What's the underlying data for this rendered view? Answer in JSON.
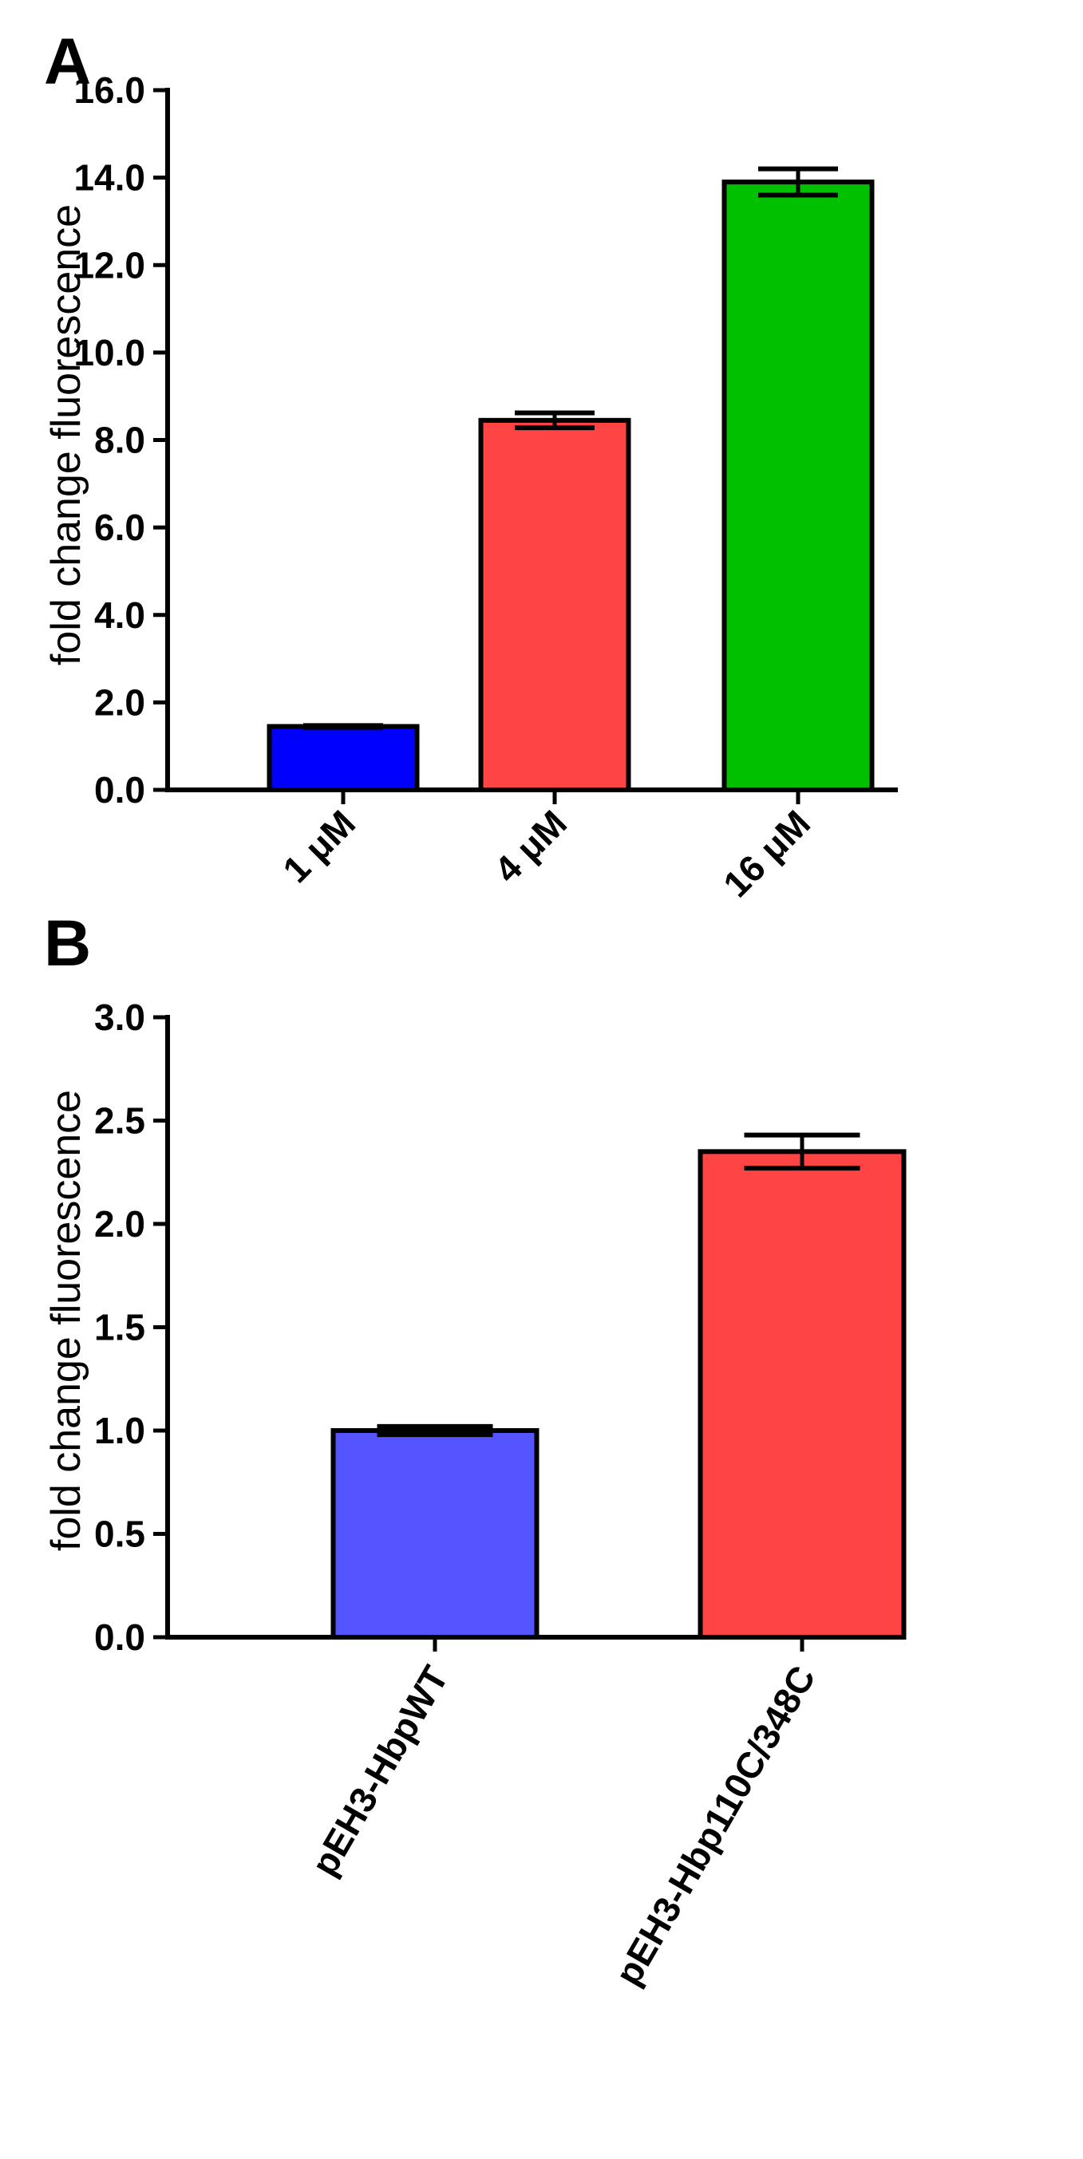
{
  "chart_data": [
    {
      "panel": "A",
      "type": "bar",
      "title": "",
      "xlabel": "",
      "ylabel": "fold change fluorescence",
      "ylim": [
        0,
        16
      ],
      "yticks": [
        "0.0",
        "2.0",
        "4.0",
        "6.0",
        "8.0",
        "10.0",
        "12.0",
        "14.0",
        "16.0"
      ],
      "ytick_values": [
        0,
        2,
        4,
        6,
        8,
        10,
        12,
        14,
        16
      ],
      "categories": [
        "1 μM",
        "4 μM",
        "16 μM"
      ],
      "values": [
        1.45,
        8.45,
        13.9
      ],
      "errors": [
        0.02,
        0.17,
        0.3
      ],
      "colors": [
        "#0000ff",
        "#ff4444",
        "#00c000"
      ]
    },
    {
      "panel": "B",
      "type": "bar",
      "title": "",
      "xlabel": "",
      "ylabel": "fold change fluorescence",
      "ylim": [
        0,
        3
      ],
      "yticks": [
        "0.0",
        "0.5",
        "1.0",
        "1.5",
        "2.0",
        "2.5",
        "3.0"
      ],
      "ytick_values": [
        0,
        0.5,
        1.0,
        1.5,
        2.0,
        2.5,
        3.0
      ],
      "categories": [
        "pEH3-HbpWT",
        "pEH3-Hbp110C/348C"
      ],
      "values": [
        1.0,
        2.35
      ],
      "errors": [
        0.02,
        0.08
      ],
      "colors": [
        "#5555ff",
        "#ff4444"
      ]
    }
  ]
}
